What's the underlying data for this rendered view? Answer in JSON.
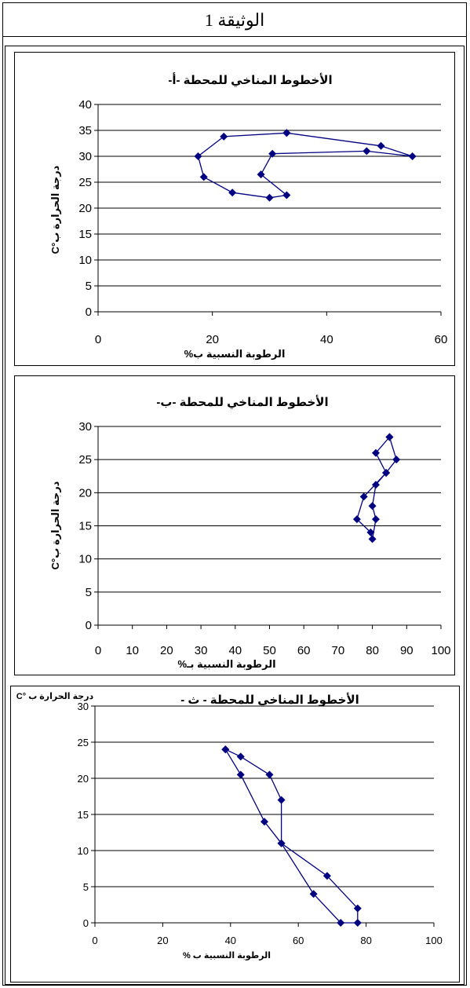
{
  "document": {
    "title": "الوثيقة 1"
  },
  "chart_data": [
    {
      "type": "line",
      "title": "الأخطوط المناخي للمحطة -أ-",
      "xlabel": "الرطوبة النسبية ب%",
      "ylabel": "درجة الحرارة ب°C",
      "xlim": [
        0,
        60
      ],
      "ylim": [
        0,
        40
      ],
      "xticks": [
        0,
        20,
        40,
        60
      ],
      "yticks": [
        0,
        5,
        10,
        15,
        20,
        25,
        30,
        35,
        40
      ],
      "grid": "horizontal",
      "legend": "none",
      "color": "#000080",
      "points": [
        [
          33,
          34.5
        ],
        [
          49.5,
          32
        ],
        [
          55,
          30
        ],
        [
          47,
          31
        ],
        [
          30.5,
          30.5
        ],
        [
          28.5,
          26.5
        ],
        [
          33,
          22.5
        ],
        [
          30,
          22
        ],
        [
          23.5,
          23
        ],
        [
          18.5,
          26
        ],
        [
          17.5,
          30
        ],
        [
          22,
          33.8
        ],
        [
          33,
          34.5
        ]
      ]
    },
    {
      "type": "line",
      "title": "الأخطوط المناخي للمحطة -ب-",
      "xlabel": "الرطوبة النسبية بـ%",
      "ylabel": "درجة الحرارة ب°C",
      "xlim": [
        0,
        100
      ],
      "ylim": [
        0,
        30
      ],
      "xticks": [
        0,
        10,
        20,
        30,
        40,
        50,
        60,
        70,
        80,
        90,
        100
      ],
      "yticks": [
        0,
        5,
        10,
        15,
        20,
        25,
        30
      ],
      "grid": "horizontal",
      "legend": "none",
      "color": "#000080",
      "points": [
        [
          85,
          28.4
        ],
        [
          87,
          25
        ],
        [
          84,
          23
        ],
        [
          81,
          21.2
        ],
        [
          80,
          18
        ],
        [
          81,
          16
        ],
        [
          80,
          13
        ],
        [
          79.5,
          14
        ],
        [
          75.5,
          16
        ],
        [
          77.5,
          19.4
        ],
        [
          84,
          23
        ],
        [
          81,
          26
        ],
        [
          85,
          28.4
        ]
      ]
    },
    {
      "type": "line",
      "title": "الأخطوط المناخي للمحطة - ث -",
      "xlabel": "الرطوبة النسبية ب %",
      "ylabel": "درجة الحرارة ب °C",
      "xlim": [
        0,
        100
      ],
      "ylim": [
        0,
        30
      ],
      "xticks": [
        0,
        20,
        40,
        60,
        80,
        100
      ],
      "yticks": [
        0,
        5,
        10,
        15,
        20,
        25,
        30
      ],
      "grid": "horizontal",
      "legend": "none",
      "color": "#000080",
      "points": [
        [
          38.5,
          24
        ],
        [
          43,
          23
        ],
        [
          51.5,
          20.5
        ],
        [
          55,
          17
        ],
        [
          55,
          11
        ],
        [
          68.5,
          6.5
        ],
        [
          77.5,
          2
        ],
        [
          77.5,
          0
        ],
        [
          72.5,
          0
        ],
        [
          64.5,
          4
        ],
        [
          55,
          11
        ],
        [
          50,
          14
        ],
        [
          43,
          20.5
        ],
        [
          38.5,
          24
        ]
      ]
    }
  ]
}
